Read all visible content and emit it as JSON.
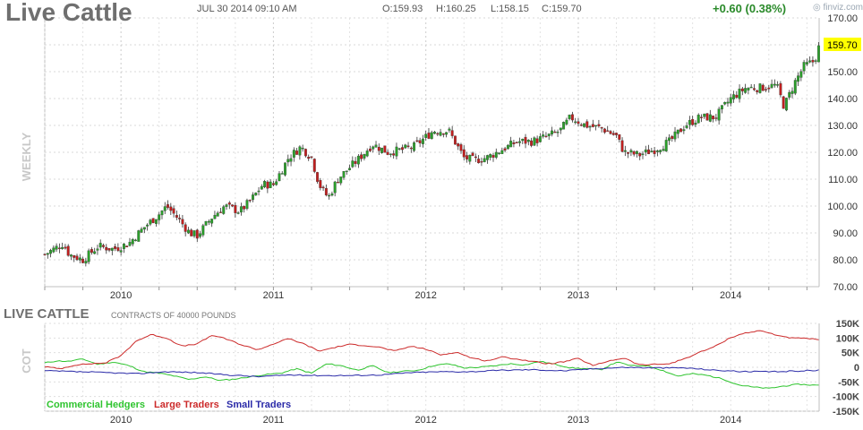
{
  "header": {
    "title": "Live Cattle",
    "datetime": "JUL 30 2014 09:10 AM",
    "open": "O:159.93",
    "high": "H:160.25",
    "low": "L:158.15",
    "close": "C:159.70",
    "change": "+0.60 (0.38%)",
    "brand": "finviz.com",
    "colors": {
      "title": "#6f6f6f",
      "change": "#2a8a2a",
      "price_tag_bg": "#ffff00"
    }
  },
  "cot": {
    "title": "LIVE CATTLE",
    "subtitle": "CONTRACTS OF 40000 POUNDS",
    "side_label": "COT",
    "legend": [
      {
        "label": "Commercial Hedgers",
        "color": "#2ec42e"
      },
      {
        "label": "Large Traders",
        "color": "#cc2a2a"
      },
      {
        "label": "Small Traders",
        "color": "#2a2aa8"
      }
    ]
  },
  "chart_data": [
    {
      "type": "candlestick",
      "side_label": "WEEKLY",
      "last_price_label": "159.70",
      "x_start_year": 2009.5,
      "x_end_year": 2014.58,
      "x_ticks": [
        {
          "label": "2010",
          "year": 2010
        },
        {
          "label": "2011",
          "year": 2011
        },
        {
          "label": "2012",
          "year": 2012
        },
        {
          "label": "2013",
          "year": 2013
        },
        {
          "label": "2014",
          "year": 2014
        }
      ],
      "y_ticks": [
        "170.00",
        "160.00",
        "150.00",
        "140.00",
        "130.00",
        "120.00",
        "110.00",
        "100.00",
        "90.00",
        "80.00",
        "70.00"
      ],
      "ylim": [
        70,
        170
      ],
      "grid": true,
      "close_anchors": [
        [
          2009.5,
          82
        ],
        [
          2009.62,
          86
        ],
        [
          2009.66,
          82
        ],
        [
          2009.75,
          80
        ],
        [
          2009.85,
          85
        ],
        [
          2009.95,
          84
        ],
        [
          2010.05,
          86
        ],
        [
          2010.15,
          92
        ],
        [
          2010.25,
          97
        ],
        [
          2010.3,
          100
        ],
        [
          2010.38,
          95
        ],
        [
          2010.45,
          90
        ],
        [
          2010.5,
          89
        ],
        [
          2010.6,
          96
        ],
        [
          2010.68,
          100
        ],
        [
          2010.78,
          98
        ],
        [
          2010.85,
          102
        ],
        [
          2010.93,
          108
        ],
        [
          2011.0,
          108
        ],
        [
          2011.1,
          118
        ],
        [
          2011.18,
          122
        ],
        [
          2011.25,
          118
        ],
        [
          2011.3,
          108
        ],
        [
          2011.36,
          103
        ],
        [
          2011.42,
          110
        ],
        [
          2011.55,
          117
        ],
        [
          2011.65,
          123
        ],
        [
          2011.75,
          120
        ],
        [
          2011.85,
          121
        ],
        [
          2011.92,
          122
        ],
        [
          2012.05,
          128
        ],
        [
          2012.15,
          128
        ],
        [
          2012.25,
          118
        ],
        [
          2012.32,
          117
        ],
        [
          2012.4,
          118
        ],
        [
          2012.5,
          121
        ],
        [
          2012.6,
          124
        ],
        [
          2012.7,
          124
        ],
        [
          2012.8,
          126
        ],
        [
          2012.88,
          128
        ],
        [
          2012.95,
          133
        ],
        [
          2013.05,
          130
        ],
        [
          2013.15,
          129
        ],
        [
          2013.25,
          126
        ],
        [
          2013.3,
          120
        ],
        [
          2013.4,
          119
        ],
        [
          2013.5,
          121
        ],
        [
          2013.6,
          124
        ],
        [
          2013.7,
          130
        ],
        [
          2013.8,
          133
        ],
        [
          2013.9,
          133
        ],
        [
          2014.0,
          140
        ],
        [
          2014.1,
          144
        ],
        [
          2014.2,
          144
        ],
        [
          2014.3,
          145
        ],
        [
          2014.35,
          137
        ],
        [
          2014.42,
          146
        ],
        [
          2014.48,
          152
        ],
        [
          2014.55,
          154
        ],
        [
          2014.58,
          159.7
        ]
      ]
    },
    {
      "type": "line",
      "ylim": [
        -150,
        150
      ],
      "y_ticks": [
        "150K",
        "100K",
        "50K",
        "0",
        "-50K",
        "-100K",
        "-150K"
      ],
      "x_ticks": [
        "2010",
        "2011",
        "2012",
        "2013",
        "2014"
      ],
      "series": [
        {
          "name": "Commercial Hedgers",
          "points": [
            [
              2009.5,
              15
            ],
            [
              2009.58,
              22
            ],
            [
              2009.65,
              20
            ],
            [
              2009.75,
              28
            ],
            [
              2009.85,
              10
            ],
            [
              2009.95,
              18
            ],
            [
              2010.05,
              6
            ],
            [
              2010.15,
              -15
            ],
            [
              2010.25,
              -20
            ],
            [
              2010.35,
              -30
            ],
            [
              2010.45,
              -42
            ],
            [
              2010.55,
              -32
            ],
            [
              2010.65,
              -45
            ],
            [
              2010.75,
              -40
            ],
            [
              2010.85,
              -32
            ],
            [
              2010.95,
              -25
            ],
            [
              2011.05,
              -20
            ],
            [
              2011.15,
              -5
            ],
            [
              2011.25,
              -20
            ],
            [
              2011.35,
              12
            ],
            [
              2011.45,
              5
            ],
            [
              2011.55,
              -10
            ],
            [
              2011.65,
              5
            ],
            [
              2011.75,
              -18
            ],
            [
              2011.85,
              -14
            ],
            [
              2011.95,
              -10
            ],
            [
              2012.05,
              6
            ],
            [
              2012.15,
              12
            ],
            [
              2012.25,
              -2
            ],
            [
              2012.35,
              0
            ],
            [
              2012.45,
              5
            ],
            [
              2012.55,
              12
            ],
            [
              2012.65,
              8
            ],
            [
              2012.75,
              20
            ],
            [
              2012.85,
              10
            ],
            [
              2012.95,
              -2
            ],
            [
              2013.05,
              -5
            ],
            [
              2013.15,
              -8
            ],
            [
              2013.25,
              18
            ],
            [
              2013.35,
              5
            ],
            [
              2013.45,
              6
            ],
            [
              2013.55,
              -10
            ],
            [
              2013.65,
              -30
            ],
            [
              2013.75,
              -22
            ],
            [
              2013.85,
              -28
            ],
            [
              2013.95,
              -40
            ],
            [
              2014.05,
              -60
            ],
            [
              2014.15,
              -68
            ],
            [
              2014.25,
              -72
            ],
            [
              2014.35,
              -64
            ],
            [
              2014.45,
              -58
            ],
            [
              2014.58,
              -62
            ]
          ]
        },
        {
          "name": "Large Traders",
          "points": [
            [
              2009.5,
              2
            ],
            [
              2009.6,
              -5
            ],
            [
              2009.7,
              8
            ],
            [
              2009.8,
              12
            ],
            [
              2009.9,
              15
            ],
            [
              2010.0,
              40
            ],
            [
              2010.1,
              90
            ],
            [
              2010.2,
              112
            ],
            [
              2010.3,
              100
            ],
            [
              2010.4,
              72
            ],
            [
              2010.5,
              80
            ],
            [
              2010.6,
              110
            ],
            [
              2010.7,
              95
            ],
            [
              2010.8,
              75
            ],
            [
              2010.9,
              60
            ],
            [
              2011.0,
              80
            ],
            [
              2011.1,
              98
            ],
            [
              2011.2,
              80
            ],
            [
              2011.3,
              55
            ],
            [
              2011.4,
              68
            ],
            [
              2011.5,
              78
            ],
            [
              2011.6,
              75
            ],
            [
              2011.7,
              68
            ],
            [
              2011.8,
              55
            ],
            [
              2011.9,
              72
            ],
            [
              2012.0,
              62
            ],
            [
              2012.1,
              42
            ],
            [
              2012.2,
              52
            ],
            [
              2012.3,
              32
            ],
            [
              2012.4,
              22
            ],
            [
              2012.5,
              35
            ],
            [
              2012.6,
              28
            ],
            [
              2012.7,
              20
            ],
            [
              2012.8,
              12
            ],
            [
              2012.9,
              18
            ],
            [
              2013.0,
              30
            ],
            [
              2013.1,
              5
            ],
            [
              2013.2,
              22
            ],
            [
              2013.3,
              32
            ],
            [
              2013.4,
              8
            ],
            [
              2013.5,
              10
            ],
            [
              2013.6,
              12
            ],
            [
              2013.7,
              30
            ],
            [
              2013.8,
              52
            ],
            [
              2013.9,
              72
            ],
            [
              2014.0,
              102
            ],
            [
              2014.1,
              118
            ],
            [
              2014.2,
              125
            ],
            [
              2014.3,
              110
            ],
            [
              2014.4,
              100
            ],
            [
              2014.5,
              98
            ],
            [
              2014.58,
              95
            ]
          ]
        },
        {
          "name": "Small Traders",
          "points": [
            [
              2009.5,
              -12
            ],
            [
              2009.7,
              -15
            ],
            [
              2009.9,
              -18
            ],
            [
              2010.1,
              -22
            ],
            [
              2010.3,
              -15
            ],
            [
              2010.5,
              -18
            ],
            [
              2010.7,
              -26
            ],
            [
              2010.9,
              -32
            ],
            [
              2011.1,
              -26
            ],
            [
              2011.3,
              -28
            ],
            [
              2011.5,
              -28
            ],
            [
              2011.7,
              -26
            ],
            [
              2011.9,
              -18
            ],
            [
              2012.1,
              -15
            ],
            [
              2012.3,
              -15
            ],
            [
              2012.5,
              -10
            ],
            [
              2012.7,
              -8
            ],
            [
              2012.9,
              -12
            ],
            [
              2013.1,
              -5
            ],
            [
              2013.3,
              0
            ],
            [
              2013.5,
              -2
            ],
            [
              2013.7,
              -2
            ],
            [
              2013.9,
              -10
            ],
            [
              2014.1,
              -15
            ],
            [
              2014.3,
              -15
            ],
            [
              2014.58,
              -10
            ]
          ]
        }
      ]
    }
  ]
}
